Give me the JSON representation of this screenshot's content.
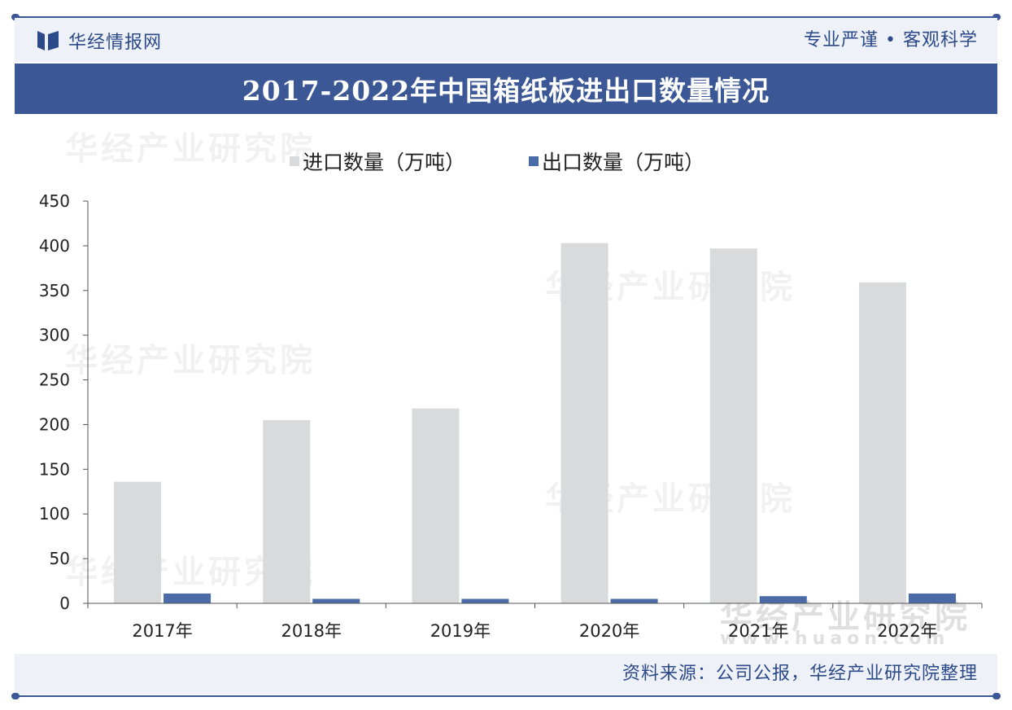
{
  "header": {
    "brand": "华经情报网",
    "slogan": "专业严谨 • 客观科学"
  },
  "footer": {
    "source": "资料来源：公司公报，华经产业研究院整理"
  },
  "watermark": {
    "text": "华经产业研究院",
    "url": "www.huaon.com"
  },
  "colors": {
    "accent": "#3b5796",
    "import_bar": "#d9dadc",
    "export_bar": "#4a6aa8"
  },
  "chart_data": {
    "type": "bar",
    "title": "2017-2022年中国箱纸板进出口数量情况",
    "categories": [
      "2017年",
      "2018年",
      "2019年",
      "2020年",
      "2021年",
      "2022年"
    ],
    "series": [
      {
        "name": "进口数量（万吨）",
        "values": [
          136,
          205,
          218,
          403,
          397,
          359
        ]
      },
      {
        "name": "出口数量（万吨）",
        "values": [
          11,
          5,
          5,
          5,
          8,
          11
        ]
      }
    ],
    "xlabel": "",
    "ylabel": "",
    "ylim": [
      0,
      450
    ],
    "yticks": [
      0,
      50,
      100,
      150,
      200,
      250,
      300,
      350,
      400,
      450
    ],
    "grid": false,
    "legend_position": "top-center"
  }
}
